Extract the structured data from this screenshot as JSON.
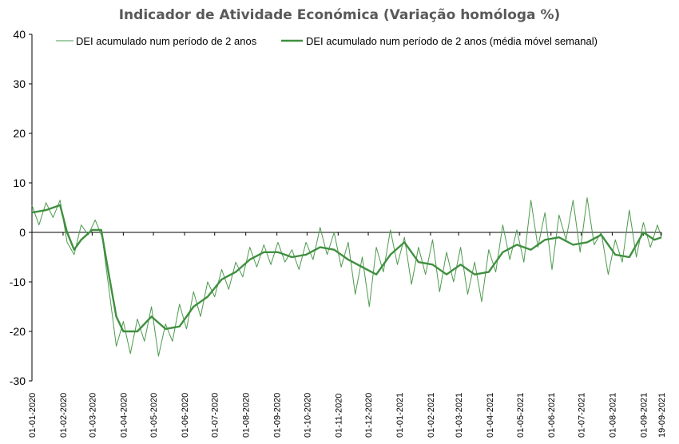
{
  "chart_data": {
    "type": "line",
    "title": "Indicador de Atividade Económica (Variação homóloga %)",
    "ylim": [
      -30,
      40
    ],
    "yticks": [
      -30,
      -20,
      -10,
      0,
      10,
      20,
      30,
      40
    ],
    "x_range": [
      "2020-01-01",
      "2021-09-19"
    ],
    "x_tick_labels": [
      "01-01-2020",
      "01-02-2020",
      "01-03-2020",
      "01-04-2020",
      "01-05-2020",
      "01-06-2020",
      "01-07-2020",
      "01-08-2020",
      "01-09-2020",
      "01-10-2020",
      "01-11-2020",
      "01-12-2020",
      "01-01-2021",
      "01-02-2021",
      "01-03-2021",
      "01-04-2021",
      "01-05-2021",
      "01-06-2021",
      "01-07-2021",
      "01-08-2021",
      "01-09-2021",
      "19-09-2021"
    ],
    "x_tick_dates": [
      "2020-01-01",
      "2020-02-01",
      "2020-03-01",
      "2020-04-01",
      "2020-05-01",
      "2020-06-01",
      "2020-07-01",
      "2020-08-01",
      "2020-09-01",
      "2020-10-01",
      "2020-11-01",
      "2020-12-01",
      "2021-01-01",
      "2021-02-01",
      "2021-03-01",
      "2021-04-01",
      "2021-05-01",
      "2021-06-01",
      "2021-07-01",
      "2021-08-01",
      "2021-09-01",
      "2021-09-19"
    ],
    "legend_position": "top",
    "grid": false,
    "series": [
      {
        "name": "DEI acumulado num período de 2 anos",
        "color": "#4e9a4e",
        "style": "thin",
        "x": [
          "2020-01-01",
          "2020-01-08",
          "2020-01-15",
          "2020-01-22",
          "2020-01-29",
          "2020-02-05",
          "2020-02-12",
          "2020-02-19",
          "2020-02-26",
          "2020-03-04",
          "2020-03-11",
          "2020-03-18",
          "2020-03-25",
          "2020-04-01",
          "2020-04-08",
          "2020-04-15",
          "2020-04-22",
          "2020-04-29",
          "2020-05-06",
          "2020-05-13",
          "2020-05-20",
          "2020-05-27",
          "2020-06-03",
          "2020-06-10",
          "2020-06-17",
          "2020-06-24",
          "2020-07-01",
          "2020-07-08",
          "2020-07-15",
          "2020-07-22",
          "2020-07-29",
          "2020-08-05",
          "2020-08-12",
          "2020-08-19",
          "2020-08-26",
          "2020-09-02",
          "2020-09-09",
          "2020-09-16",
          "2020-09-23",
          "2020-09-30",
          "2020-10-07",
          "2020-10-14",
          "2020-10-21",
          "2020-10-28",
          "2020-11-04",
          "2020-11-11",
          "2020-11-18",
          "2020-11-25",
          "2020-12-02",
          "2020-12-09",
          "2020-12-16",
          "2020-12-23",
          "2020-12-30",
          "2021-01-06",
          "2021-01-13",
          "2021-01-20",
          "2021-01-27",
          "2021-02-03",
          "2021-02-10",
          "2021-02-17",
          "2021-02-24",
          "2021-03-03",
          "2021-03-10",
          "2021-03-17",
          "2021-03-24",
          "2021-03-31",
          "2021-04-07",
          "2021-04-14",
          "2021-04-21",
          "2021-04-28",
          "2021-05-05",
          "2021-05-12",
          "2021-05-19",
          "2021-05-26",
          "2021-06-02",
          "2021-06-09",
          "2021-06-16",
          "2021-06-23",
          "2021-06-30",
          "2021-07-07",
          "2021-07-14",
          "2021-07-21",
          "2021-07-28",
          "2021-08-04",
          "2021-08-11",
          "2021-08-18",
          "2021-08-25",
          "2021-09-01",
          "2021-09-08",
          "2021-09-15",
          "2021-09-19"
        ],
        "values": [
          5.5,
          1.5,
          6.0,
          3.0,
          6.5,
          -2.0,
          -4.5,
          1.5,
          -0.5,
          2.5,
          -1.0,
          -12.0,
          -23.0,
          -18.0,
          -24.5,
          -17.5,
          -22.0,
          -15.0,
          -25.0,
          -18.5,
          -22.0,
          -14.5,
          -19.5,
          -12.0,
          -17.0,
          -10.0,
          -13.0,
          -7.5,
          -11.5,
          -6.0,
          -9.0,
          -3.0,
          -7.0,
          -2.5,
          -6.5,
          -2.0,
          -6.0,
          -3.5,
          -7.5,
          -2.0,
          -5.5,
          1.0,
          -4.5,
          0.0,
          -7.0,
          -2.0,
          -12.5,
          -5.0,
          -15.0,
          -3.0,
          -8.0,
          0.5,
          -6.5,
          -1.0,
          -10.5,
          -3.0,
          -8.5,
          -1.5,
          -12.0,
          -4.0,
          -10.0,
          -3.0,
          -12.5,
          -6.0,
          -14.0,
          -3.5,
          -8.0,
          1.5,
          -5.5,
          0.5,
          -6.0,
          6.5,
          -3.0,
          4.0,
          -7.5,
          3.5,
          -1.5,
          6.5,
          -4.0,
          7.0,
          -2.5,
          0.0,
          -8.5,
          -1.5,
          -6.0,
          4.5,
          -5.0,
          2.0,
          -3.0,
          1.5,
          -1.0
        ]
      },
      {
        "name": "DEI acumulado num período de 2 anos (média móvel semanal)",
        "color": "#3f8f3f",
        "style": "thick",
        "x": [
          "2020-01-01",
          "2020-01-15",
          "2020-01-29",
          "2020-02-05",
          "2020-02-12",
          "2020-02-19",
          "2020-03-01",
          "2020-03-10",
          "2020-03-18",
          "2020-03-25",
          "2020-04-01",
          "2020-04-15",
          "2020-04-29",
          "2020-05-13",
          "2020-05-27",
          "2020-06-10",
          "2020-06-24",
          "2020-07-08",
          "2020-07-22",
          "2020-08-05",
          "2020-08-19",
          "2020-09-02",
          "2020-09-16",
          "2020-09-30",
          "2020-10-14",
          "2020-10-28",
          "2020-11-11",
          "2020-11-25",
          "2020-12-09",
          "2020-12-23",
          "2021-01-06",
          "2021-01-20",
          "2021-02-03",
          "2021-02-17",
          "2021-03-03",
          "2021-03-17",
          "2021-03-31",
          "2021-04-14",
          "2021-04-28",
          "2021-05-12",
          "2021-05-26",
          "2021-06-09",
          "2021-06-23",
          "2021-07-07",
          "2021-07-21",
          "2021-08-04",
          "2021-08-18",
          "2021-09-01",
          "2021-09-12",
          "2021-09-19"
        ],
        "values": [
          4.0,
          4.5,
          5.5,
          0.0,
          -3.5,
          -1.5,
          0.5,
          0.5,
          -9.0,
          -17.0,
          -20.0,
          -20.0,
          -17.0,
          -19.5,
          -19.0,
          -15.0,
          -13.0,
          -9.5,
          -8.0,
          -5.5,
          -4.0,
          -4.0,
          -5.0,
          -4.5,
          -3.0,
          -3.5,
          -5.5,
          -7.0,
          -8.5,
          -4.5,
          -2.0,
          -6.0,
          -6.5,
          -8.5,
          -6.5,
          -8.5,
          -8.0,
          -4.0,
          -2.5,
          -3.5,
          -1.5,
          -1.0,
          -2.5,
          -2.0,
          -0.5,
          -4.5,
          -5.0,
          0.0,
          -1.5,
          -1.0
        ]
      }
    ]
  }
}
